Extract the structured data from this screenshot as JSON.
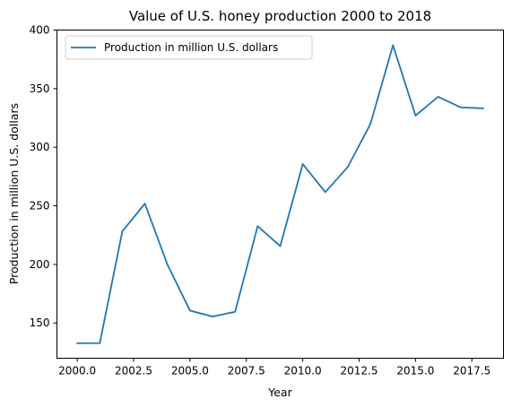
{
  "chart_data": {
    "type": "line",
    "title": "Value of U.S. honey production 2000 to 2018",
    "xlabel": "Year",
    "ylabel": "Production in million U.S. dollars",
    "x": [
      2000,
      2001,
      2002,
      2003,
      2004,
      2005,
      2006,
      2007,
      2008,
      2009,
      2010,
      2011,
      2012,
      2013,
      2014,
      2015,
      2016,
      2017,
      2018
    ],
    "series": [
      {
        "name": "Production in million U.S. dollars",
        "color": "#1f77b4",
        "values": [
          132.7,
          132.8,
          228.2,
          251.9,
          199.8,
          160.6,
          155.5,
          159.5,
          232.6,
          215.6,
          285.6,
          261.6,
          283.3,
          319.8,
          387.0,
          327.0,
          343.0,
          334.0,
          333.2
        ]
      }
    ],
    "xlim": [
      1999.1,
      2018.9
    ],
    "ylim": [
      119.9,
      400
    ],
    "xticks": [
      "2000.0",
      "2002.5",
      "2005.0",
      "2007.5",
      "2010.0",
      "2012.5",
      "2015.0",
      "2017.5"
    ],
    "yticks": [
      "150",
      "200",
      "250",
      "300",
      "350",
      "400"
    ],
    "legend_position": "top-left",
    "grid": false
  }
}
